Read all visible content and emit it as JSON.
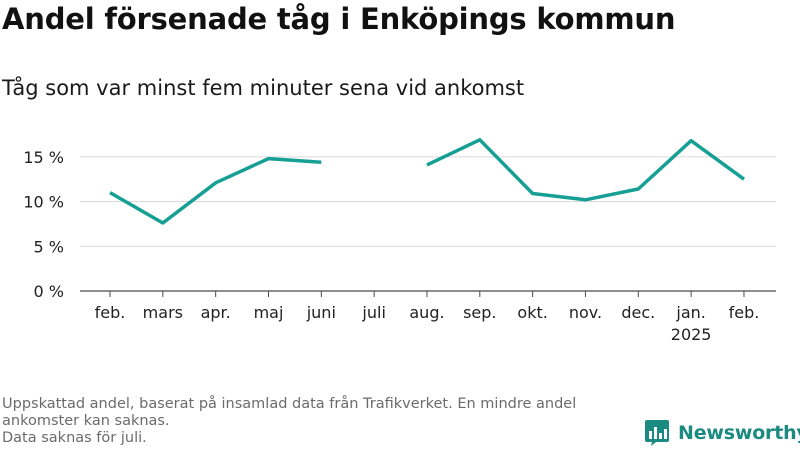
{
  "header": {
    "title": "Andel försenade tåg i Enköpings kommun",
    "subtitle": "Tåg som var minst fem minuter sena vid ankomst"
  },
  "chart_data": {
    "type": "line",
    "x": [
      "feb.",
      "mars",
      "apr.",
      "maj",
      "juni",
      "juli",
      "aug.",
      "sep.",
      "okt.",
      "nov.",
      "dec.",
      "jan.",
      "feb."
    ],
    "x_sublabels": [
      "",
      "",
      "",
      "",
      "",
      "",
      "",
      "",
      "",
      "",
      "",
      "2025",
      ""
    ],
    "series": [
      {
        "values": [
          11.0,
          7.6,
          12.1,
          14.8,
          14.4,
          null,
          14.1,
          16.9,
          10.9,
          10.2,
          11.4,
          16.8,
          12.5
        ]
      }
    ],
    "yticks": [
      "0 %",
      "5 %",
      "10 %",
      "15 %"
    ],
    "ytick_values": [
      0,
      5,
      10,
      15
    ],
    "ylim": [
      0,
      18
    ],
    "grid": true,
    "line_color": "#16a095"
  },
  "footer": {
    "note_line1": "Uppskattad andel, baserat på insamlad data från Trafikverket. En mindre andel ankomster kan saknas.",
    "note_line2": "Data saknas för juli.",
    "brand": "Newsworthy",
    "brand_color": "#1b8a80",
    "logo_icon": "newsworthy-bar-chart-icon"
  }
}
